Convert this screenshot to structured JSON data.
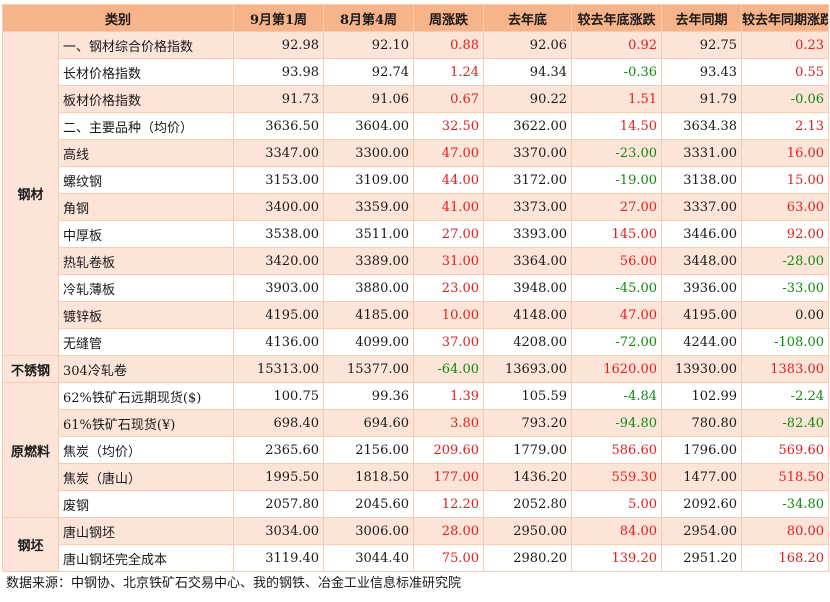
{
  "headers": [
    "类别",
    "9月第1周",
    "8月第4周",
    "周涨跌",
    "去年底",
    "较去年底涨跌",
    "去年同期",
    "较去年同期涨跌"
  ],
  "groups": [
    {
      "category": "钢材",
      "rows": [
        {
          "name": "一、钢材综合价格指数",
          "w1": "92.98",
          "w2": "92.10",
          "wchg": "0.88",
          "ly_end": "92.06",
          "ly_end_chg": "0.92",
          "ly_same": "92.75",
          "ly_same_chg": "0.23"
        },
        {
          "name": "长材价格指数",
          "w1": "93.98",
          "w2": "92.74",
          "wchg": "1.24",
          "ly_end": "94.34",
          "ly_end_chg": "-0.36",
          "ly_same": "93.43",
          "ly_same_chg": "0.55"
        },
        {
          "name": "板材价格指数",
          "w1": "91.73",
          "w2": "91.06",
          "wchg": "0.67",
          "ly_end": "90.22",
          "ly_end_chg": "1.51",
          "ly_same": "91.79",
          "ly_same_chg": "-0.06"
        },
        {
          "name": "二、主要品种（均价）",
          "w1": "3636.50",
          "w2": "3604.00",
          "wchg": "32.50",
          "ly_end": "3622.00",
          "ly_end_chg": "14.50",
          "ly_same": "3634.38",
          "ly_same_chg": "2.13"
        },
        {
          "name": "高线",
          "w1": "3347.00",
          "w2": "3300.00",
          "wchg": "47.00",
          "ly_end": "3370.00",
          "ly_end_chg": "-23.00",
          "ly_same": "3331.00",
          "ly_same_chg": "16.00"
        },
        {
          "name": "螺纹钢",
          "w1": "3153.00",
          "w2": "3109.00",
          "wchg": "44.00",
          "ly_end": "3172.00",
          "ly_end_chg": "-19.00",
          "ly_same": "3138.00",
          "ly_same_chg": "15.00"
        },
        {
          "name": "角钢",
          "w1": "3400.00",
          "w2": "3359.00",
          "wchg": "41.00",
          "ly_end": "3373.00",
          "ly_end_chg": "27.00",
          "ly_same": "3337.00",
          "ly_same_chg": "63.00"
        },
        {
          "name": "中厚板",
          "w1": "3538.00",
          "w2": "3511.00",
          "wchg": "27.00",
          "ly_end": "3393.00",
          "ly_end_chg": "145.00",
          "ly_same": "3446.00",
          "ly_same_chg": "92.00"
        },
        {
          "name": "热轧卷板",
          "w1": "3420.00",
          "w2": "3389.00",
          "wchg": "31.00",
          "ly_end": "3364.00",
          "ly_end_chg": "56.00",
          "ly_same": "3448.00",
          "ly_same_chg": "-28.00"
        },
        {
          "name": "冷轧薄板",
          "w1": "3903.00",
          "w2": "3880.00",
          "wchg": "23.00",
          "ly_end": "3948.00",
          "ly_end_chg": "-45.00",
          "ly_same": "3936.00",
          "ly_same_chg": "-33.00"
        },
        {
          "name": "镀锌板",
          "w1": "4195.00",
          "w2": "4185.00",
          "wchg": "10.00",
          "ly_end": "4148.00",
          "ly_end_chg": "47.00",
          "ly_same": "4195.00",
          "ly_same_chg": "0.00"
        },
        {
          "name": "无缝管",
          "w1": "4136.00",
          "w2": "4099.00",
          "wchg": "37.00",
          "ly_end": "4208.00",
          "ly_end_chg": "-72.00",
          "ly_same": "4244.00",
          "ly_same_chg": "-108.00"
        }
      ]
    },
    {
      "category": "不锈钢",
      "rows": [
        {
          "name": "304冷轧卷",
          "w1": "15313.00",
          "w2": "15377.00",
          "wchg": "-64.00",
          "ly_end": "13693.00",
          "ly_end_chg": "1620.00",
          "ly_same": "13930.00",
          "ly_same_chg": "1383.00"
        }
      ]
    },
    {
      "category": "原燃料",
      "rows": [
        {
          "name": "62%铁矿石远期现货($)",
          "w1": "100.75",
          "w2": "99.36",
          "wchg": "1.39",
          "ly_end": "105.59",
          "ly_end_chg": "-4.84",
          "ly_same": "102.99",
          "ly_same_chg": "-2.24"
        },
        {
          "name": "61%铁矿石现货(¥)",
          "w1": "698.40",
          "w2": "694.60",
          "wchg": "3.80",
          "ly_end": "793.20",
          "ly_end_chg": "-94.80",
          "ly_same": "780.80",
          "ly_same_chg": "-82.40"
        },
        {
          "name": "焦炭（均价）",
          "w1": "2365.60",
          "w2": "2156.00",
          "wchg": "209.60",
          "ly_end": "1779.00",
          "ly_end_chg": "586.60",
          "ly_same": "1796.00",
          "ly_same_chg": "569.60"
        },
        {
          "name": "焦炭（唐山）",
          "w1": "1995.50",
          "w2": "1818.50",
          "wchg": "177.00",
          "ly_end": "1436.20",
          "ly_end_chg": "559.30",
          "ly_same": "1477.00",
          "ly_same_chg": "518.50"
        },
        {
          "name": "废钢",
          "w1": "2057.80",
          "w2": "2045.60",
          "wchg": "12.20",
          "ly_end": "2052.80",
          "ly_end_chg": "5.00",
          "ly_same": "2092.60",
          "ly_same_chg": "-34.80"
        }
      ]
    },
    {
      "category": "钢坯",
      "rows": [
        {
          "name": "唐山钢坯",
          "w1": "3034.00",
          "w2": "3006.00",
          "wchg": "28.00",
          "ly_end": "2950.00",
          "ly_end_chg": "84.00",
          "ly_same": "2954.00",
          "ly_same_chg": "80.00"
        },
        {
          "name": "唐山钢坯完全成本",
          "w1": "3119.40",
          "w2": "3044.40",
          "wchg": "75.00",
          "ly_end": "2980.20",
          "ly_end_chg": "139.20",
          "ly_same": "2951.20",
          "ly_same_chg": "168.20"
        }
      ]
    }
  ],
  "source": "数据来源：中钢协、北京铁矿石交易中心、我的钢铁、冶金工业信息标准研究院",
  "colors": {
    "header_bg": "#f7b38a",
    "shade_bg": "#fce5d8",
    "border": "#f7cbb2",
    "positive": "#e02020",
    "negative": "#118a11"
  }
}
